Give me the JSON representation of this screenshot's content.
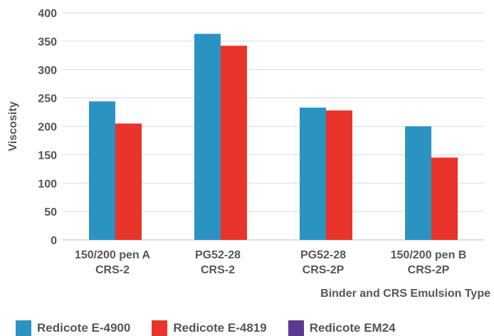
{
  "chart_data": {
    "type": "bar",
    "title": "",
    "xlabel": "Binder and CRS Emulsion Type",
    "ylabel": "Viscosity",
    "ylim": [
      0,
      400
    ],
    "yticks": [
      "0",
      "50",
      "100",
      "150",
      "200",
      "250",
      "300",
      "350",
      "400"
    ],
    "grid": true,
    "legend_position": "bottom",
    "categories": [
      [
        "150/200 pen A",
        "CRS-2"
      ],
      [
        "PG52-28",
        "CRS-2"
      ],
      [
        "PG52-28",
        "CRS-2P"
      ],
      [
        "150/200 pen B",
        "CRS-2P"
      ]
    ],
    "series": [
      {
        "name": "Redicote E-4900",
        "color": "#2a93c1",
        "values": [
          244,
          363,
          233,
          200
        ]
      },
      {
        "name": "Redicote E-4819",
        "color": "#e8342b",
        "values": [
          205,
          342,
          228,
          145
        ]
      },
      {
        "name": "Redicote EM24",
        "color": "#5b3a91",
        "values": [
          null,
          null,
          null,
          null
        ]
      }
    ]
  }
}
